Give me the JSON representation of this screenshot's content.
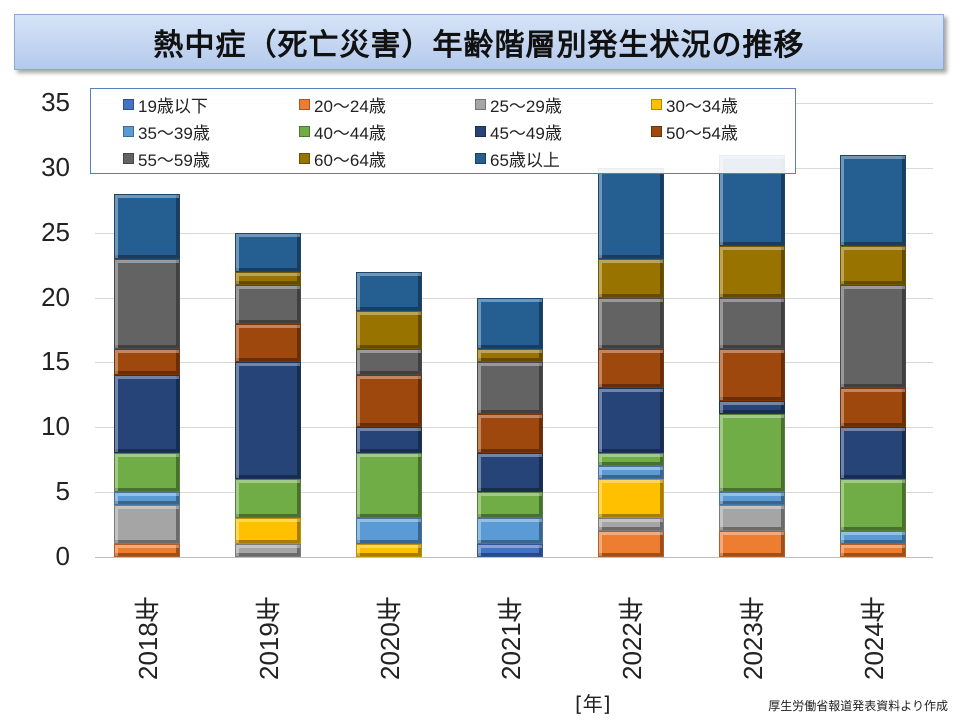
{
  "title": "熱中症（死亡災害）年齢階層別発生状況の推移",
  "x_unit": "[年]",
  "source": "厚生労働省報道発表資料より作成",
  "chart_data": {
    "type": "bar",
    "stacked": true,
    "title": "熱中症（死亡災害）年齢階層別発生状況の推移",
    "xlabel": "[年]",
    "ylabel": "",
    "ylim": [
      0,
      35
    ],
    "yticks": [
      "0",
      "5",
      "10",
      "15",
      "20",
      "25",
      "30",
      "35"
    ],
    "grid": true,
    "legend_position": "top",
    "categories": [
      "2018年",
      "2019年",
      "2020年",
      "2021年",
      "2022年",
      "2023年",
      "2024年"
    ],
    "series": [
      {
        "name": "19歳以下",
        "color": "#4472C4",
        "values": [
          0,
          0,
          0,
          1,
          0,
          0,
          0
        ]
      },
      {
        "name": "20～24歳",
        "color": "#ED7D31",
        "values": [
          1,
          0,
          0,
          0,
          2,
          2,
          1
        ]
      },
      {
        "name": "25～29歳",
        "color": "#A5A5A5",
        "values": [
          3,
          1,
          0,
          0,
          1,
          2,
          0
        ]
      },
      {
        "name": "30～34歳",
        "color": "#FFC000",
        "values": [
          0,
          2,
          1,
          0,
          3,
          0,
          0
        ]
      },
      {
        "name": "35～39歳",
        "color": "#5B9BD5",
        "values": [
          1,
          0,
          2,
          2,
          1,
          1,
          1
        ]
      },
      {
        "name": "40～44歳",
        "color": "#70AD47",
        "values": [
          3,
          3,
          5,
          2,
          1,
          6,
          4
        ]
      },
      {
        "name": "45～49歳",
        "color": "#264478",
        "values": [
          6,
          9,
          2,
          3,
          5,
          1,
          4
        ]
      },
      {
        "name": "50～54歳",
        "color": "#9E480E",
        "values": [
          2,
          3,
          4,
          3,
          3,
          4,
          3
        ]
      },
      {
        "name": "55～59歳",
        "color": "#636363",
        "values": [
          7,
          3,
          2,
          4,
          4,
          4,
          8
        ]
      },
      {
        "name": "60～64歳",
        "color": "#997300",
        "values": [
          0,
          1,
          3,
          1,
          3,
          4,
          3
        ]
      },
      {
        "name": "65歳以上",
        "color": "#255E91",
        "values": [
          5,
          3,
          3,
          4,
          7,
          7,
          7
        ]
      }
    ]
  }
}
